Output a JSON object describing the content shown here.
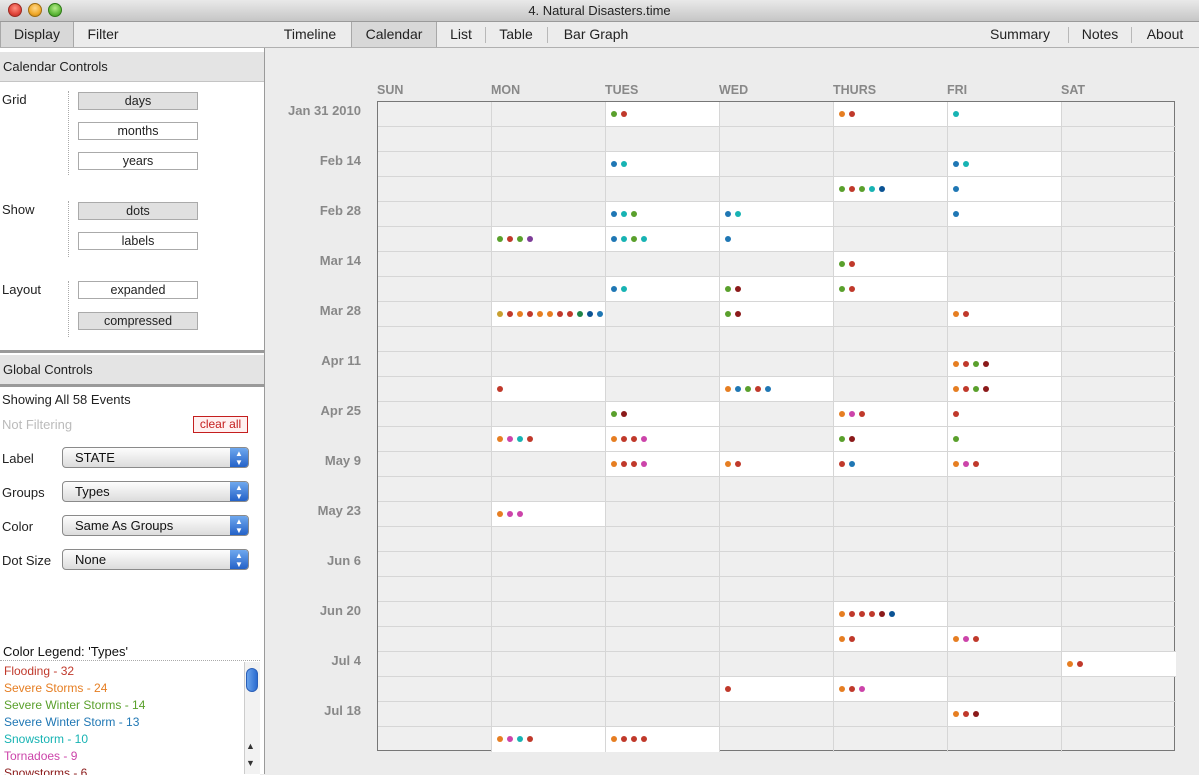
{
  "window": {
    "title": "4. Natural Disasters.time"
  },
  "left_tabs": [
    "Display",
    "Filter"
  ],
  "main_tabs": [
    "Timeline",
    "Calendar",
    "List",
    "Table",
    "Bar Graph"
  ],
  "right_tabs": [
    "Summary",
    "Notes",
    "About"
  ],
  "calendar_controls": {
    "header": "Calendar Controls",
    "grid_label": "Grid",
    "grid_options": [
      "days",
      "months",
      "years"
    ],
    "show_label": "Show",
    "show_options": [
      "dots",
      "labels"
    ],
    "layout_label": "Layout",
    "layout_options": [
      "expanded",
      "compressed"
    ]
  },
  "global_controls": {
    "header": "Global Controls",
    "showing": "Showing All 58 Events",
    "filtering": "Not Filtering",
    "clear_all": "clear all",
    "label_label": "Label",
    "label_value": "STATE",
    "groups_label": "Groups",
    "groups_value": "Types",
    "color_label": "Color",
    "color_value": "Same As Groups",
    "dotsize_label": "Dot Size",
    "dotsize_value": "None"
  },
  "legend": {
    "title": "Color Legend: 'Types'",
    "items": [
      {
        "text": "Flooding - 32",
        "color": "#c0392b"
      },
      {
        "text": "Severe Storms - 24",
        "color": "#e67e22"
      },
      {
        "text": "Severe Winter Storms - 14",
        "color": "#5aa02c"
      },
      {
        "text": "Severe Winter Storm - 13",
        "color": "#1f77b4"
      },
      {
        "text": "Snowstorm - 10",
        "color": "#17b3b3"
      },
      {
        "text": "Tornadoes - 9",
        "color": "#cc44aa"
      },
      {
        "text": "Snowstorms - 6",
        "color": "#8b1a1a"
      }
    ]
  },
  "calendar": {
    "days": [
      "SUN",
      "MON",
      "TUES",
      "WED",
      "THURS",
      "FRI",
      "SAT"
    ],
    "week_labels": [
      "Jan 31 2010",
      "",
      "Feb 14",
      "",
      "Feb 28",
      "",
      "Mar 14",
      "",
      "Mar 28",
      "",
      "Apr 11",
      "",
      "Apr 25",
      "",
      "May 9",
      "",
      "May 23",
      "",
      "Jun 6",
      "",
      "Jun 20",
      "",
      "Jul 4",
      "",
      "Jul 18",
      ""
    ],
    "colors": {
      "r": "#c0392b",
      "o": "#e67e22",
      "g": "#5aa02c",
      "b": "#1f77b4",
      "c": "#17b3b3",
      "p": "#cc44aa",
      "m": "#8b1a1a",
      "y": "#c8a030",
      "u": "#7d3c98",
      "n": "#0b5394",
      "d": "#1e8449"
    },
    "weeks": [
      [
        "",
        "",
        "gr",
        "",
        "or",
        "c",
        ""
      ],
      [
        "",
        "",
        "",
        "",
        "",
        "",
        ""
      ],
      [
        "",
        "",
        "bc",
        "",
        "",
        "bc",
        ""
      ],
      [
        "",
        "",
        "",
        "",
        "grgcn",
        "b",
        ""
      ],
      [
        "",
        "",
        "bcg",
        "bc",
        "",
        "b",
        ""
      ],
      [
        "",
        "grgu",
        "bcgc",
        "b",
        "",
        "",
        ""
      ],
      [
        "",
        "",
        "",
        "",
        "gr",
        "",
        ""
      ],
      [
        "",
        "",
        "bc",
        "gm",
        "gr",
        "",
        ""
      ],
      [
        "",
        "yroroorrdnb",
        "",
        "gm",
        "",
        "or",
        ""
      ],
      [
        "",
        "",
        "",
        "",
        "",
        "",
        ""
      ],
      [
        "",
        "",
        "",
        "",
        "",
        "orgm",
        ""
      ],
      [
        "",
        "r",
        "",
        "obgrb",
        "",
        "orgm",
        ""
      ],
      [
        "",
        "",
        "gm",
        "",
        "opr",
        "r",
        ""
      ],
      [
        "",
        "opcr",
        "orrp",
        "",
        "gm",
        "g",
        ""
      ],
      [
        "",
        "",
        "orrp",
        "or",
        "rb",
        "opr",
        ""
      ],
      [
        "",
        "",
        "",
        "",
        "",
        "",
        ""
      ],
      [
        "",
        "opp",
        "",
        "",
        "",
        "",
        ""
      ],
      [
        "",
        "",
        "",
        "",
        "",
        "",
        ""
      ],
      [
        "",
        "",
        "",
        "",
        "",
        "",
        ""
      ],
      [
        "",
        "",
        "",
        "",
        "",
        "",
        ""
      ],
      [
        "",
        "",
        "",
        "",
        "orrrmn",
        "",
        ""
      ],
      [
        "",
        "",
        "",
        "",
        "or",
        "opr",
        ""
      ],
      [
        "",
        "",
        "",
        "",
        "",
        "",
        "or"
      ],
      [
        "",
        "",
        "",
        "r",
        "orp",
        "",
        ""
      ],
      [
        "",
        "",
        "",
        "",
        "",
        "orm",
        ""
      ],
      [
        "",
        "opcr",
        "orrr",
        "",
        "",
        "",
        ""
      ]
    ]
  }
}
